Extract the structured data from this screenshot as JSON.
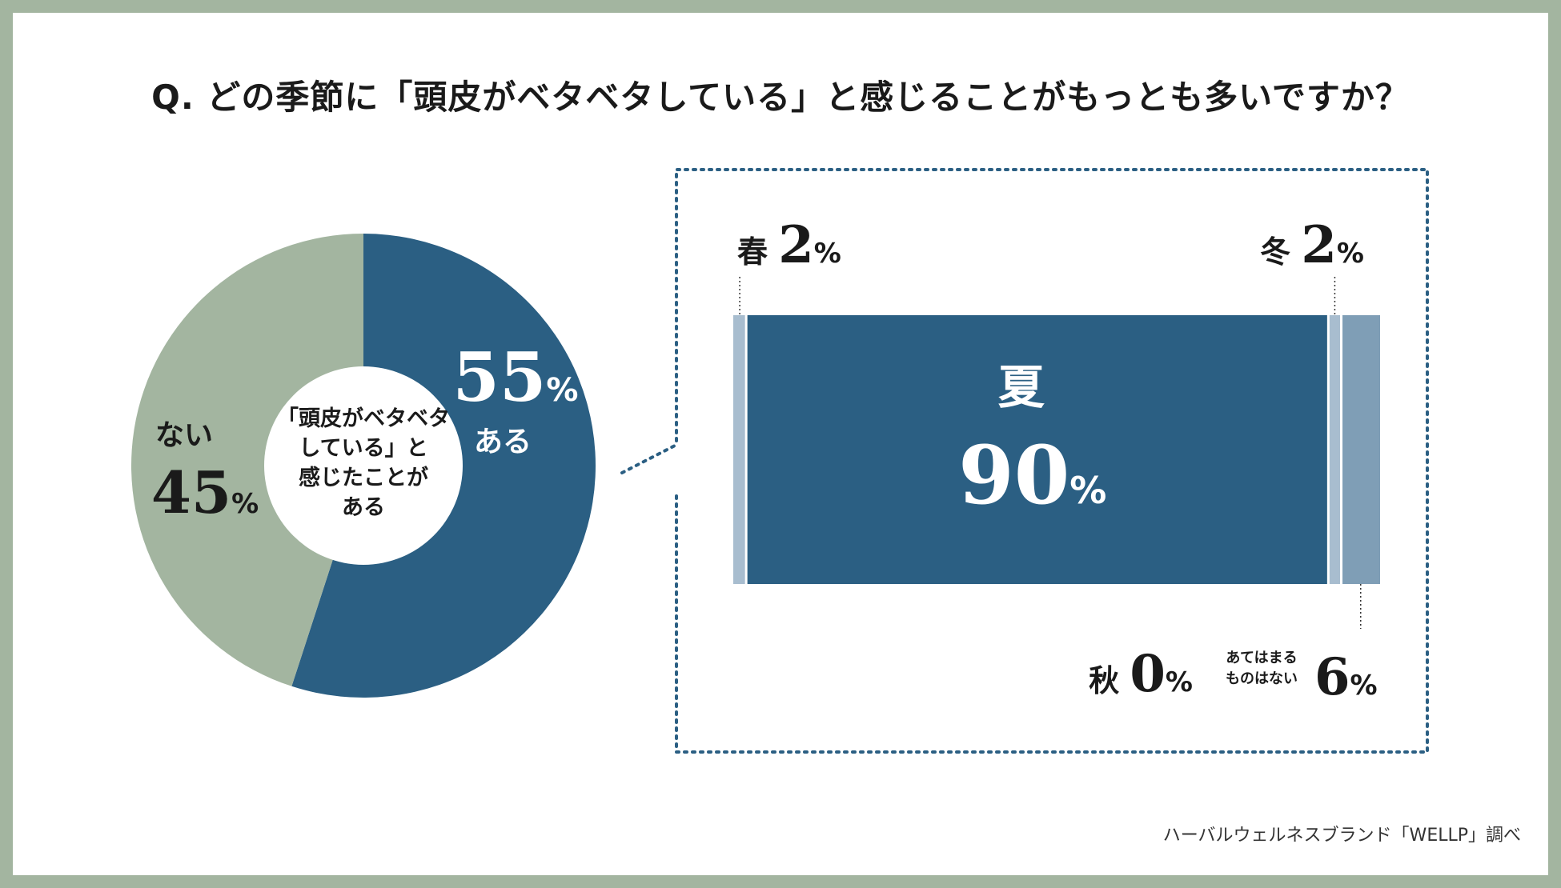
{
  "title": "Q. どの季節に「頭皮がベタベタしている」と感じることがもっとも多いですか？",
  "source": "ハーバルウェルネスブランド「WELLP」調べ",
  "colors": {
    "background_border": "#a3b5a0",
    "navy": "#2b5f83",
    "sage": "#a3b5a0",
    "light_blue": "#a8bdcf",
    "mid_blue": "#7f9eb6",
    "dotted_border": "#2b5f83"
  },
  "chart_data": [
    {
      "type": "pie",
      "center_label": [
        "「頭皮がベタベタ",
        "している」と",
        "感じたことが",
        "ある"
      ],
      "slices": [
        {
          "label": "ある",
          "value": 55,
          "unit": "%",
          "color": "#2b5f83"
        },
        {
          "label": "ない",
          "value": 45,
          "unit": "%",
          "color": "#a3b5a0"
        }
      ]
    },
    {
      "type": "bar",
      "orientation": "horizontal-stacked",
      "categories": [
        "春",
        "夏",
        "秋",
        "冬",
        "あてはまるものはない"
      ],
      "values": [
        2,
        90,
        0,
        2,
        6
      ],
      "unit": "%",
      "colors": [
        "#a8bdcf",
        "#2b5f83",
        "#a8bdcf",
        "#a8bdcf",
        "#7f9eb6"
      ],
      "label_lines": {
        "none_of_these": [
          "あてはまる",
          "ものはない"
        ]
      }
    }
  ]
}
